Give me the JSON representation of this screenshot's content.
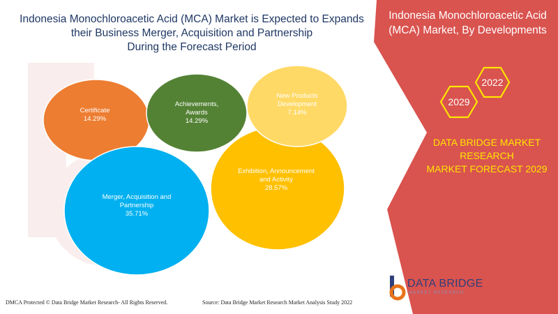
{
  "header": {
    "title": "Indonesia Monochloroacetic Acid (MCA) Market is Expected to Expands their Business Merger, Acquisition and Partnership During the Forecast Period",
    "title_lines": [
      "Indonesia Monochloroacetic Acid (MCA) Market is Expected to Expands",
      "their Business Merger, Acquisition and Partnership",
      "During the Forecast Period"
    ]
  },
  "side_panel": {
    "title_lines": [
      "Indonesia Monochloroacetic Acid",
      "(MCA) Market, By Developments"
    ],
    "years": [
      "2029",
      "2022"
    ],
    "dbmr_lines": [
      "DATA BRIDGE MARKET",
      "RESEARCH",
      "MARKET FORECAST 2029"
    ]
  },
  "chart_data": {
    "type": "bubble",
    "title": "Indonesia Monochloroacetic Acid (MCA) Market, By Developments",
    "unit": "%",
    "series": [
      {
        "name": "Certificate",
        "label_lines": [
          "Certificate"
        ],
        "value": 14.29,
        "display": "14.29%"
      },
      {
        "name": "Achievements, Awards",
        "label_lines": [
          "Achievements,",
          "Awards"
        ],
        "value": 14.29,
        "display": "14.29%"
      },
      {
        "name": "New Products Development",
        "label_lines": [
          "New Products",
          "Development"
        ],
        "value": 7.14,
        "display": "7.14%"
      },
      {
        "name": "Exhibition, Announcement and Activity",
        "label_lines": [
          "Exhibition, Announcement",
          "and Activity"
        ],
        "value": 28.57,
        "display": "28.57%"
      },
      {
        "name": "Merger, Acquisition and Partnership",
        "label_lines": [
          "Merger, Acquisition and",
          "Partnership"
        ],
        "value": 35.71,
        "display": "35.71%"
      }
    ],
    "colors": [
      "#ed7d31",
      "#548235",
      "#ffd966",
      "#ffc000",
      "#00b0f0"
    ]
  },
  "footer": {
    "left": "DMCA Protected © Data Bridge Market Research- All Rights Reserved.",
    "right": "Source: Data Bridge Market Research Market Analysis Study 2022"
  },
  "brand": {
    "name": "DATA BRIDGE",
    "subtitle": "MARKET RESEARCH",
    "colors": {
      "panel": "#d9534f",
      "accent": "#ffe600",
      "title": "#1f3864"
    }
  }
}
